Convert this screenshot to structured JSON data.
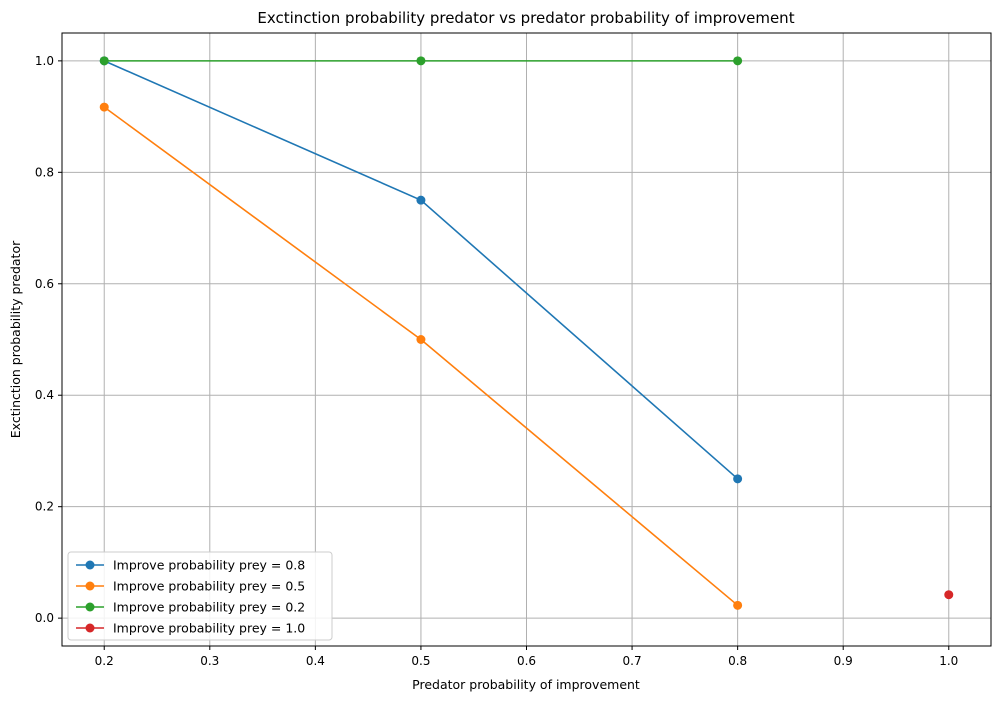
{
  "chart_data": {
    "type": "line",
    "title": "Exctinction probability predator vs predator probability of improvement",
    "xlabel": "Predator probability of improvement",
    "ylabel": "Exctinction probability predator",
    "xlim": [
      0.16,
      1.04
    ],
    "ylim": [
      -0.05,
      1.05
    ],
    "xticks": [
      0.2,
      0.3,
      0.4,
      0.5,
      0.6,
      0.7,
      0.8,
      0.9,
      1.0
    ],
    "xtick_labels": [
      "0.2",
      "0.3",
      "0.4",
      "0.5",
      "0.6",
      "0.7",
      "0.8",
      "0.9",
      "1.0"
    ],
    "yticks": [
      0.0,
      0.2,
      0.4,
      0.6,
      0.8,
      1.0
    ],
    "ytick_labels": [
      "0.0",
      "0.2",
      "0.4",
      "0.6",
      "0.8",
      "1.0"
    ],
    "grid": true,
    "legend_position": "lower-left",
    "series": [
      {
        "name": "Improve probability prey = 0.8",
        "color": "#1f77b4",
        "x": [
          0.2,
          0.5,
          0.8
        ],
        "y": [
          1.0,
          0.75,
          0.25
        ]
      },
      {
        "name": "Improve probability prey = 0.5",
        "color": "#ff7f0e",
        "x": [
          0.2,
          0.5,
          0.8
        ],
        "y": [
          0.917,
          0.5,
          0.023
        ]
      },
      {
        "name": "Improve probability prey = 0.2",
        "color": "#2ca02c",
        "x": [
          0.2,
          0.5,
          0.8
        ],
        "y": [
          1.0,
          1.0,
          1.0
        ]
      },
      {
        "name": "Improve probability prey = 1.0",
        "color": "#d62728",
        "x": [
          1.0
        ],
        "y": [
          0.042
        ]
      }
    ]
  }
}
